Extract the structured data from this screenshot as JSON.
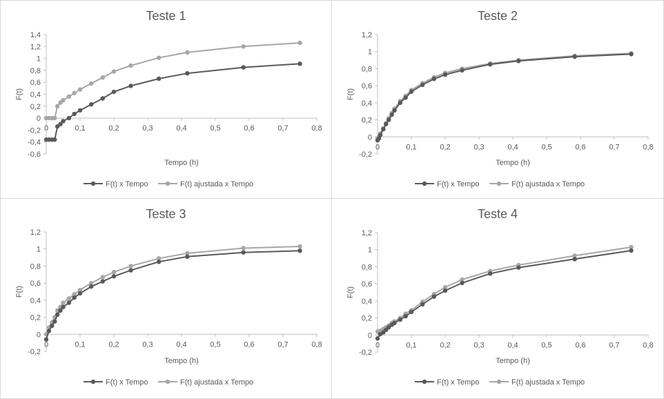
{
  "chart_data": [
    {
      "type": "line",
      "title": "Teste 1",
      "xlabel": "Tempo  (h)",
      "ylabel": "F(t)",
      "xlim": [
        0,
        0.8
      ],
      "ylim": [
        -0.6,
        1.4
      ],
      "xticks": [
        0,
        0.1,
        0.2,
        0.3,
        0.4,
        0.5,
        0.6,
        0.7,
        0.8
      ],
      "yticks": [
        -0.6,
        -0.4,
        -0.2,
        0,
        0.2,
        0.4,
        0.6,
        0.8,
        1,
        1.2,
        1.4
      ],
      "xtick_labels": [
        "0",
        "0,1",
        "0,2",
        "0,3",
        "0,4",
        "0,5",
        "0,6",
        "0,7",
        "0,8"
      ],
      "ytick_labels": [
        "-0,6",
        "-0,4",
        "-0,2",
        "0",
        "0,2",
        "0,4",
        "0,6",
        "0,8",
        "1",
        "1,2",
        "1,4"
      ],
      "legend_position": "bottom",
      "series": [
        {
          "name": "F(t) x Tempo",
          "color": "#595959",
          "x": [
            0,
            0.008,
            0.017,
            0.025,
            0.033,
            0.042,
            0.05,
            0.067,
            0.083,
            0.1,
            0.133,
            0.167,
            0.2,
            0.25,
            0.333,
            0.417,
            0.583,
            0.75
          ],
          "y": [
            -0.36,
            -0.36,
            -0.36,
            -0.36,
            -0.14,
            -0.1,
            -0.05,
            0,
            0.07,
            0.13,
            0.23,
            0.33,
            0.44,
            0.54,
            0.66,
            0.75,
            0.85,
            0.91
          ]
        },
        {
          "name": "F(t) ajustada x Tempo",
          "color": "#a6a6a6",
          "x": [
            0,
            0.008,
            0.017,
            0.025,
            0.033,
            0.042,
            0.05,
            0.067,
            0.083,
            0.1,
            0.133,
            0.167,
            0.2,
            0.25,
            0.333,
            0.417,
            0.583,
            0.75
          ],
          "y": [
            0,
            0,
            0,
            0,
            0.2,
            0.26,
            0.3,
            0.36,
            0.42,
            0.48,
            0.58,
            0.68,
            0.78,
            0.88,
            1.01,
            1.1,
            1.2,
            1.26
          ]
        }
      ]
    },
    {
      "type": "line",
      "title": "Teste 2",
      "xlabel": "Tempo  (h)",
      "ylabel": "F(t)",
      "xlim": [
        0,
        0.8
      ],
      "ylim": [
        -0.2,
        1.2
      ],
      "xticks": [
        0,
        0.1,
        0.2,
        0.3,
        0.4,
        0.5,
        0.6,
        0.7,
        0.8
      ],
      "yticks": [
        -0.2,
        0,
        0.2,
        0.4,
        0.6,
        0.8,
        1,
        1.2
      ],
      "xtick_labels": [
        "0",
        "0,1",
        "0,2",
        "0,3",
        "0,4",
        "0,5",
        "0,6",
        "0,7",
        "0,8"
      ],
      "ytick_labels": [
        "-0,2",
        "0",
        "0,2",
        "0,4",
        "0,6",
        "0,8",
        "1",
        "1,2"
      ],
      "legend_position": "bottom",
      "series": [
        {
          "name": "F(t) x Tempo",
          "color": "#595959",
          "x": [
            0,
            0.004,
            0.008,
            0.017,
            0.025,
            0.033,
            0.042,
            0.05,
            0.067,
            0.083,
            0.1,
            0.133,
            0.167,
            0.2,
            0.25,
            0.333,
            0.417,
            0.583,
            0.75
          ],
          "y": [
            -0.04,
            -0.02,
            0.02,
            0.09,
            0.15,
            0.2,
            0.26,
            0.31,
            0.4,
            0.46,
            0.53,
            0.61,
            0.68,
            0.73,
            0.78,
            0.85,
            0.89,
            0.94,
            0.97
          ]
        },
        {
          "name": "F(t) ajustada x Tempo",
          "color": "#a6a6a6",
          "x": [
            0,
            0.004,
            0.008,
            0.017,
            0.025,
            0.033,
            0.042,
            0.05,
            0.067,
            0.083,
            0.1,
            0.133,
            0.167,
            0.2,
            0.25,
            0.333,
            0.417,
            0.583,
            0.75
          ],
          "y": [
            -0.02,
            0,
            0.04,
            0.1,
            0.16,
            0.22,
            0.28,
            0.33,
            0.42,
            0.48,
            0.55,
            0.63,
            0.7,
            0.75,
            0.8,
            0.86,
            0.9,
            0.95,
            0.98
          ]
        }
      ]
    },
    {
      "type": "line",
      "title": "Teste 3",
      "xlabel": "Tempo  (h)",
      "ylabel": "F(t)",
      "xlim": [
        0,
        0.8
      ],
      "ylim": [
        -0.2,
        1.2
      ],
      "xticks": [
        0,
        0.1,
        0.2,
        0.3,
        0.4,
        0.5,
        0.6,
        0.7,
        0.8
      ],
      "yticks": [
        -0.2,
        0,
        0.2,
        0.4,
        0.6,
        0.8,
        1,
        1.2
      ],
      "xtick_labels": [
        "0",
        "0,1",
        "0,2",
        "0,3",
        "0,4",
        "0,5",
        "0,6",
        "0,7",
        "0,8"
      ],
      "ytick_labels": [
        "-0,2",
        "0",
        "0,2",
        "0,4",
        "0,6",
        "0,8",
        "1",
        "1,2"
      ],
      "legend_position": "bottom",
      "series": [
        {
          "name": "F(t) x Tempo",
          "color": "#595959",
          "x": [
            0,
            0.008,
            0.017,
            0.025,
            0.033,
            0.042,
            0.05,
            0.067,
            0.083,
            0.1,
            0.133,
            0.167,
            0.2,
            0.25,
            0.333,
            0.417,
            0.583,
            0.75
          ],
          "y": [
            -0.06,
            0.04,
            0.1,
            0.15,
            0.23,
            0.28,
            0.32,
            0.37,
            0.43,
            0.48,
            0.56,
            0.62,
            0.68,
            0.75,
            0.85,
            0.91,
            0.96,
            0.98
          ]
        },
        {
          "name": "F(t) ajustada x Tempo",
          "color": "#a6a6a6",
          "x": [
            0,
            0.008,
            0.017,
            0.025,
            0.033,
            0.042,
            0.05,
            0.067,
            0.083,
            0.1,
            0.133,
            0.167,
            0.2,
            0.25,
            0.333,
            0.417,
            0.583,
            0.75
          ],
          "y": [
            0,
            0.08,
            0.14,
            0.2,
            0.28,
            0.32,
            0.37,
            0.42,
            0.47,
            0.52,
            0.6,
            0.67,
            0.73,
            0.8,
            0.89,
            0.95,
            1.01,
            1.03
          ]
        }
      ]
    },
    {
      "type": "line",
      "title": "Teste 4",
      "xlabel": "Tempo  (h)",
      "ylabel": "F(t)",
      "xlim": [
        0,
        0.8
      ],
      "ylim": [
        -0.2,
        1.2
      ],
      "xticks": [
        0,
        0.1,
        0.2,
        0.3,
        0.4,
        0.5,
        0.6,
        0.7,
        0.8
      ],
      "yticks": [
        -0.2,
        0,
        0.2,
        0.4,
        0.6,
        0.8,
        1,
        1.2
      ],
      "xtick_labels": [
        "0",
        "0,1",
        "0,2",
        "0,3",
        "0,4",
        "0,5",
        "0,6",
        "0,7",
        "0,8"
      ],
      "ytick_labels": [
        "-0,2",
        "0",
        "0,2",
        "0,4",
        "0,6",
        "0,8",
        "1",
        "1,2"
      ],
      "legend_position": "bottom",
      "series": [
        {
          "name": "F(t) x Tempo",
          "color": "#595959",
          "x": [
            0,
            0.008,
            0.017,
            0.025,
            0.033,
            0.042,
            0.05,
            0.067,
            0.083,
            0.1,
            0.133,
            0.167,
            0.2,
            0.25,
            0.333,
            0.417,
            0.583,
            0.75
          ],
          "y": [
            -0.04,
            0.01,
            0.03,
            0.06,
            0.09,
            0.12,
            0.14,
            0.18,
            0.22,
            0.27,
            0.36,
            0.45,
            0.52,
            0.61,
            0.72,
            0.79,
            0.89,
            0.99
          ]
        },
        {
          "name": "F(t) ajustada x Tempo",
          "color": "#a6a6a6",
          "x": [
            0,
            0.008,
            0.017,
            0.025,
            0.033,
            0.042,
            0.05,
            0.067,
            0.083,
            0.1,
            0.133,
            0.167,
            0.2,
            0.25,
            0.333,
            0.417,
            0.583,
            0.75
          ],
          "y": [
            0.04,
            0.05,
            0.07,
            0.09,
            0.11,
            0.14,
            0.16,
            0.2,
            0.25,
            0.29,
            0.39,
            0.48,
            0.56,
            0.65,
            0.75,
            0.82,
            0.93,
            1.03
          ]
        }
      ]
    }
  ]
}
